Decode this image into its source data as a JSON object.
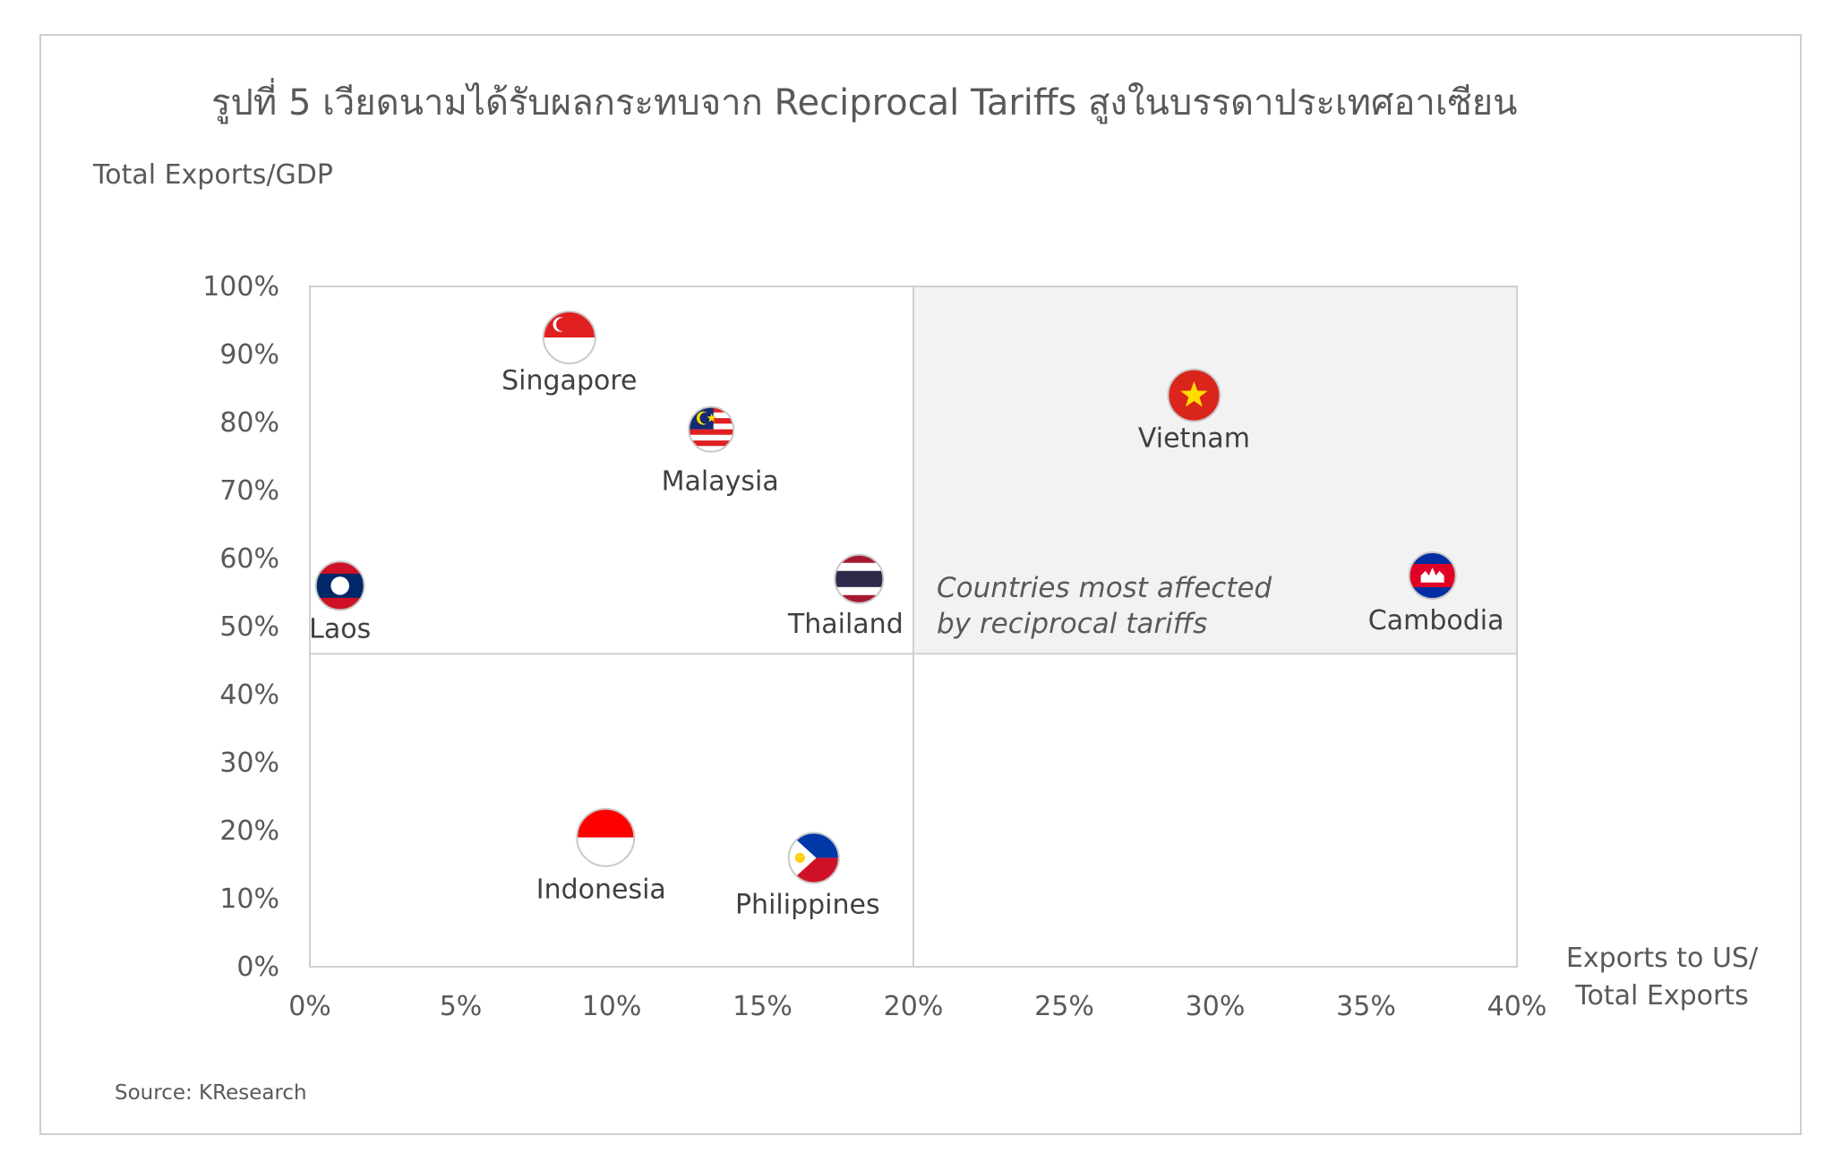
{
  "title": "รูปที่ 5 เวียดนามได้รับผลกระทบจาก Reciprocal Tariffs สูงในบรรดาประเทศอาเซียน",
  "source": "Source: KResearch",
  "colors": {
    "highlight_fill": "#f2f2f2",
    "grid_line": "#d0d0d0",
    "text": "#595959",
    "red": "#e02020",
    "blue": "#1f3a93",
    "yellow": "#ffdd00"
  },
  "chart_data": {
    "type": "scatter",
    "title": "รูปที่ 5 เวียดนามได้รับผลกระทบจาก Reciprocal Tariffs สูงในบรรดาประเทศอาเซียน",
    "xlabel_lines": [
      "Exports to US/",
      "Total Exports"
    ],
    "ylabel": "Total Exports/GDP",
    "xlim": [
      0,
      40
    ],
    "ylim": [
      0,
      100
    ],
    "x_ticks": [
      "0%",
      "5%",
      "10%",
      "15%",
      "20%",
      "25%",
      "30%",
      "35%",
      "40%"
    ],
    "y_ticks": [
      "0%",
      "10%",
      "20%",
      "30%",
      "40%",
      "50%",
      "60%",
      "70%",
      "80%",
      "90%",
      "100%"
    ],
    "quadrant_split": {
      "x": 20,
      "y": 46
    },
    "highlight_region": {
      "x_from": 20,
      "x_to": 40,
      "y_from": 46,
      "y_to": 100
    },
    "annotation": [
      "Countries most affected",
      "by reciprocal tariffs"
    ],
    "points": [
      {
        "name": "Singapore",
        "x": 8.6,
        "y": 92.5,
        "flag": "singapore-flag-icon"
      },
      {
        "name": "Malaysia",
        "x": 13.3,
        "y": 79,
        "flag": "malaysia-flag-icon"
      },
      {
        "name": "Vietnam",
        "x": 29.3,
        "y": 84,
        "flag": "vietnam-flag-icon"
      },
      {
        "name": "Laos",
        "x": 1.0,
        "y": 56,
        "flag": "laos-flag-icon"
      },
      {
        "name": "Thailand",
        "x": 18.2,
        "y": 57,
        "flag": "thailand-flag-icon"
      },
      {
        "name": "Cambodia",
        "x": 37.2,
        "y": 57.5,
        "flag": "cambodia-flag-icon"
      },
      {
        "name": "Indonesia",
        "x": 9.8,
        "y": 19,
        "flag": "indonesia-flag-icon"
      },
      {
        "name": "Philippines",
        "x": 16.7,
        "y": 16,
        "flag": "philippines-flag-icon"
      }
    ]
  }
}
